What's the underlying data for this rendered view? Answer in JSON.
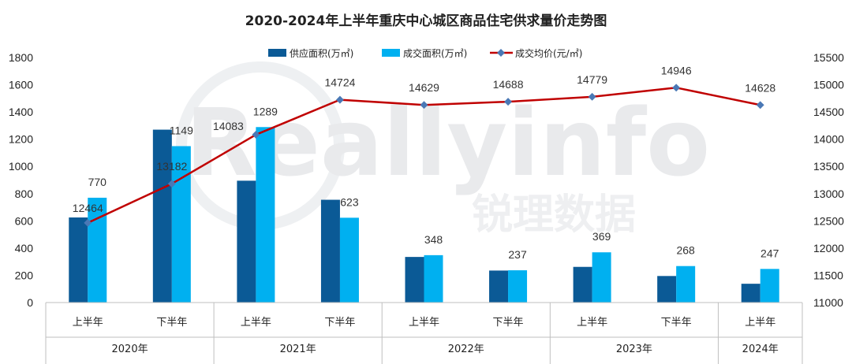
{
  "chart_data": {
    "type": "bar+line",
    "title": "2020-2024年上半年重庆中心城区商品住宅供求量价走势图",
    "categories": [
      "上半年",
      "下半年",
      "上半年",
      "下半年",
      "上半年",
      "下半年",
      "上半年",
      "下半年",
      "上半年"
    ],
    "years": [
      {
        "label": "2020年",
        "count": 2
      },
      {
        "label": "2021年",
        "count": 2
      },
      {
        "label": "2022年",
        "count": 2
      },
      {
        "label": "2023年",
        "count": 2
      },
      {
        "label": "2024年",
        "count": 1
      }
    ],
    "series": [
      {
        "name": "供应面积(万㎡)",
        "type": "bar",
        "axis": "left",
        "color": "#0b5a96",
        "values": [
          625,
          1270,
          895,
          755,
          335,
          235,
          262,
          195,
          138
        ],
        "labels": []
      },
      {
        "name": "成交面积(万㎡)",
        "type": "bar",
        "axis": "left",
        "color": "#00b0f0",
        "values": [
          770,
          1149,
          1289,
          623,
          348,
          237,
          369,
          268,
          247
        ],
        "labels": [
          "770",
          "1149",
          "1289",
          "623",
          "348",
          "237",
          "369",
          "268",
          "247"
        ]
      },
      {
        "name": "成交均价(元/㎡)",
        "type": "line",
        "axis": "right",
        "color": "#c00000",
        "marker_color": "#4a78b5",
        "values": [
          12464,
          13182,
          14083,
          14724,
          14629,
          14688,
          14779,
          14946,
          14628
        ],
        "labels": [
          "12464",
          "13182",
          "14083",
          "14724",
          "14629",
          "14688",
          "14779",
          "14946",
          "14628"
        ]
      }
    ],
    "y_left": {
      "min": 0,
      "max": 1800,
      "step": 200,
      "ticks": [
        "0",
        "200",
        "400",
        "600",
        "800",
        "1000",
        "1200",
        "1400",
        "1600",
        "1800"
      ]
    },
    "y_right": {
      "min": 11000,
      "max": 15500,
      "step": 500,
      "ticks": [
        "11000",
        "11500",
        "12000",
        "12500",
        "13000",
        "13500",
        "14000",
        "14500",
        "15000",
        "15500"
      ]
    },
    "legend_position": "top-center",
    "grid": false
  },
  "watermark": {
    "latin": "Reallyinfo",
    "chinese": "锐理数据"
  }
}
